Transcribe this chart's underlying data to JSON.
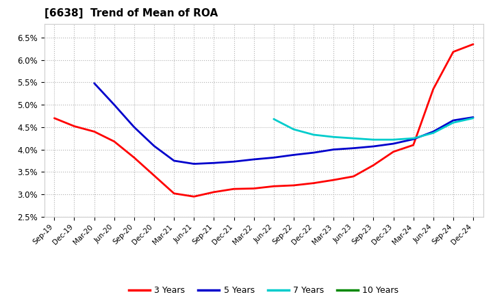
{
  "title": "[6638]  Trend of Mean of ROA",
  "background_color": "#ffffff",
  "grid_color": "#b0b0b0",
  "ylim": [
    0.025,
    0.068
  ],
  "yticks": [
    0.025,
    0.03,
    0.035,
    0.04,
    0.045,
    0.05,
    0.055,
    0.06,
    0.065
  ],
  "x_labels": [
    "Sep-19",
    "Dec-19",
    "Mar-20",
    "Jun-20",
    "Sep-20",
    "Dec-20",
    "Mar-21",
    "Jun-21",
    "Sep-21",
    "Dec-21",
    "Mar-22",
    "Jun-22",
    "Sep-22",
    "Dec-22",
    "Mar-23",
    "Jun-23",
    "Sep-23",
    "Dec-23",
    "Mar-24",
    "Jun-24",
    "Sep-24",
    "Dec-24"
  ],
  "series": {
    "3 Years": {
      "color": "#ff0000",
      "data": [
        0.047,
        0.0452,
        0.044,
        0.0418,
        0.0382,
        0.0342,
        0.0302,
        0.0295,
        0.0305,
        0.0312,
        0.0313,
        0.0318,
        0.032,
        0.0325,
        0.0332,
        0.034,
        0.0365,
        0.0395,
        0.041,
        0.0535,
        0.0618,
        0.0635
      ]
    },
    "5 Years": {
      "color": "#0000cc",
      "data": [
        null,
        null,
        0.0548,
        0.05,
        0.045,
        0.0408,
        0.0375,
        0.0368,
        0.037,
        0.0373,
        0.0378,
        0.0382,
        0.0388,
        0.0393,
        0.04,
        0.0403,
        0.0407,
        0.0413,
        0.0423,
        0.044,
        0.0465,
        0.0472
      ]
    },
    "7 Years": {
      "color": "#00cccc",
      "data": [
        null,
        null,
        null,
        null,
        null,
        null,
        null,
        null,
        null,
        null,
        null,
        0.0468,
        0.0445,
        0.0433,
        0.0428,
        0.0425,
        0.0422,
        0.0422,
        0.0425,
        0.0437,
        0.046,
        0.047
      ]
    },
    "10 Years": {
      "color": "#008800",
      "data": [
        null,
        null,
        null,
        null,
        null,
        null,
        null,
        null,
        null,
        null,
        null,
        null,
        null,
        null,
        null,
        null,
        null,
        null,
        null,
        null,
        null,
        null
      ]
    }
  },
  "legend_order": [
    "3 Years",
    "5 Years",
    "7 Years",
    "10 Years"
  ],
  "legend_colors": [
    "#ff0000",
    "#0000cc",
    "#00cccc",
    "#008800"
  ]
}
